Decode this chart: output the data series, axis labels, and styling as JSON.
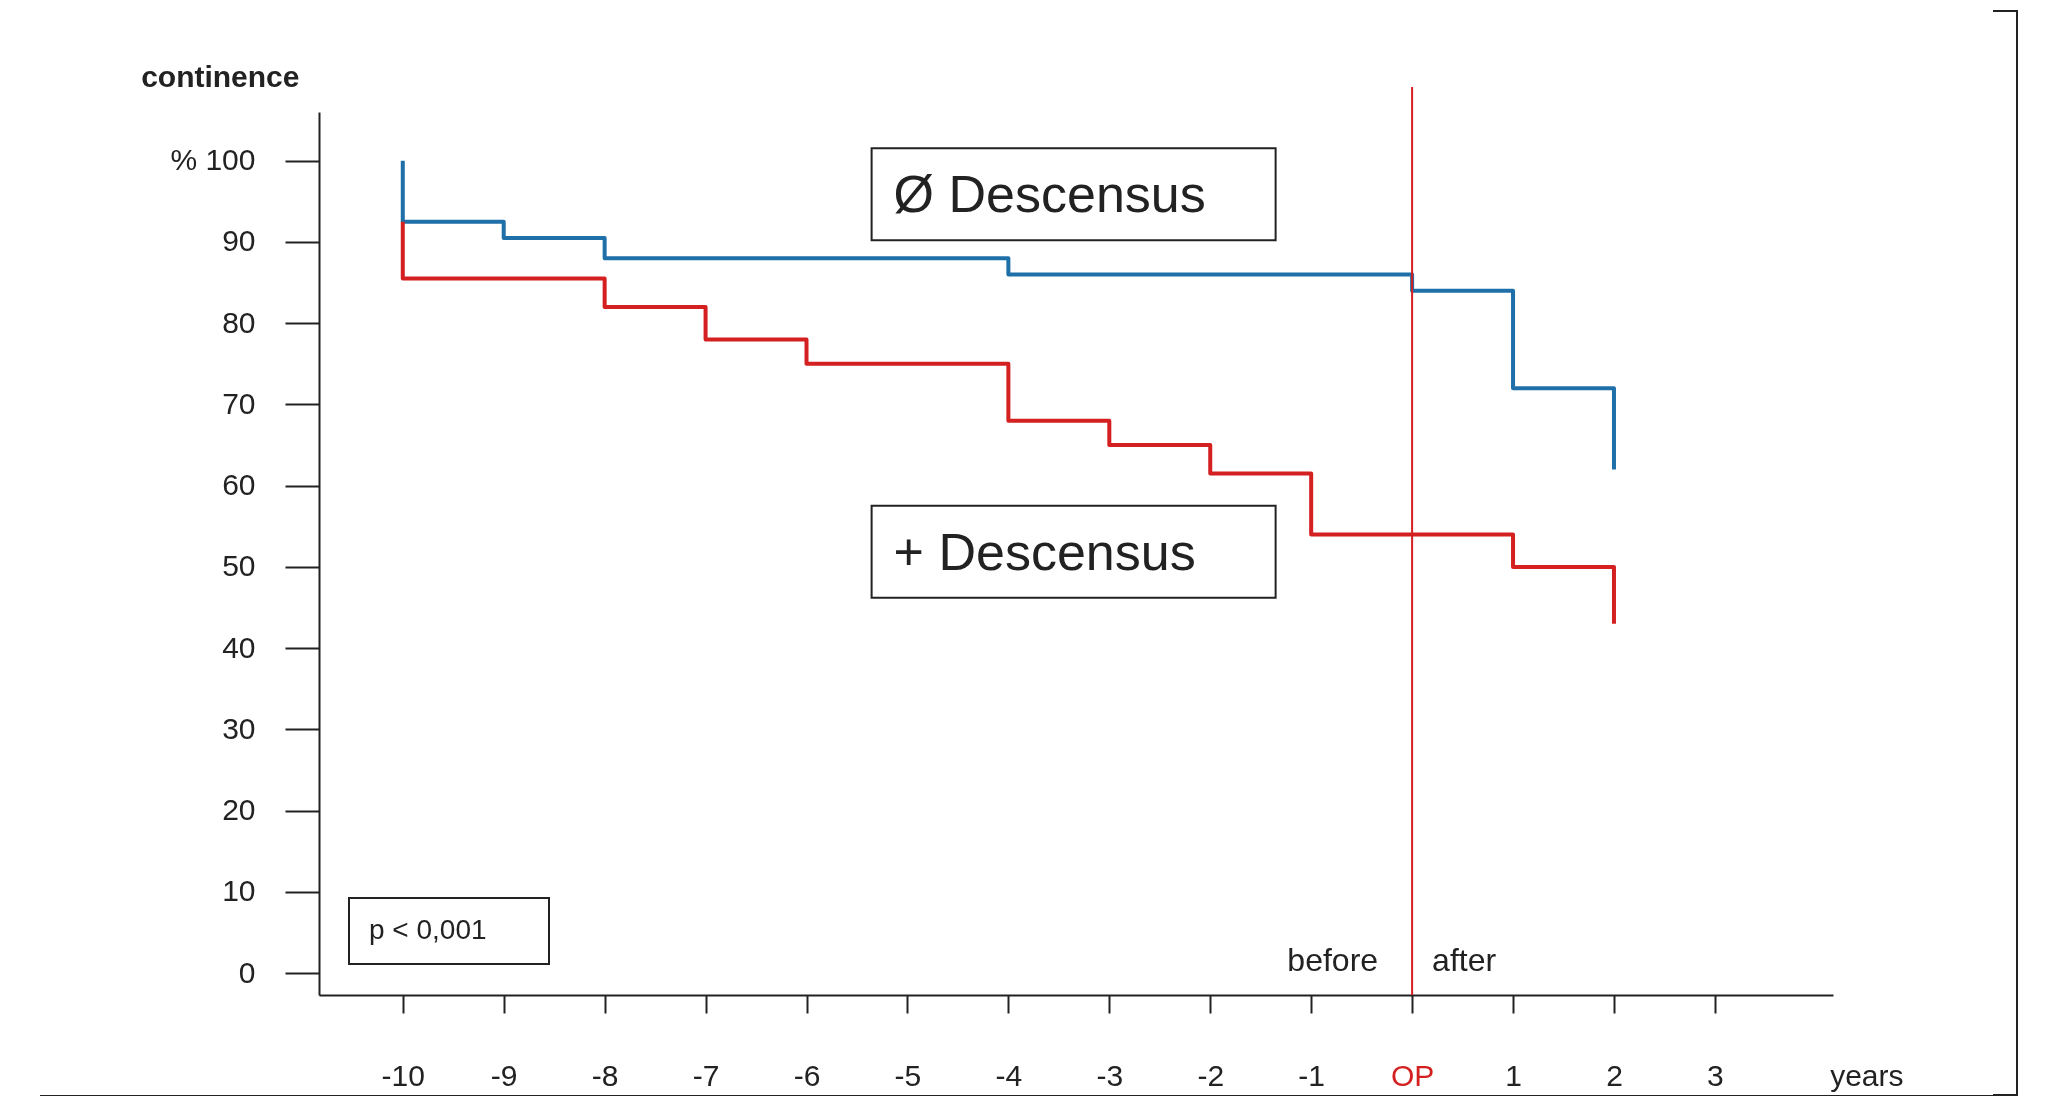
{
  "chart_data": {
    "type": "step",
    "xlabel": "years",
    "ylabel": "continence",
    "xlim": [
      -10.83,
      4.17
    ],
    "ylim": [
      -2.7,
      106
    ],
    "xticks": [
      -10,
      -9,
      -8,
      -7,
      -6,
      -5,
      -4,
      -3,
      -2,
      -1,
      {
        "value": 0,
        "label": "OP"
      },
      1,
      2,
      3
    ],
    "yticks": [
      0,
      10,
      20,
      30,
      40,
      50,
      60,
      70,
      80,
      90,
      {
        "value": 100,
        "label": "% 100"
      }
    ],
    "series": [
      {
        "name": "Ø Descensus",
        "color": "#1f6fa8",
        "x": [
          -10,
          -10,
          -9,
          -8,
          -4,
          0,
          1,
          2,
          2
        ],
        "values": [
          100,
          92.5,
          90.5,
          88,
          86,
          84,
          72,
          62,
          62
        ]
      },
      {
        "name": "+ Descensus",
        "color": "#d42020",
        "x": [
          -10,
          -10,
          -8,
          -7,
          -6,
          -4,
          -3,
          -2,
          -1,
          1,
          2,
          2
        ],
        "values": [
          92.5,
          85.5,
          82,
          78,
          75,
          68,
          65,
          61.5,
          54,
          50,
          43,
          43
        ]
      }
    ],
    "ref_lines": [
      {
        "axis": "x",
        "value": 0,
        "color": "#d42020"
      }
    ],
    "annotations": [
      "p < 0,001",
      "before",
      "after"
    ],
    "legend": false,
    "grid": false,
    "line_style": "solid",
    "marker": "none"
  }
}
